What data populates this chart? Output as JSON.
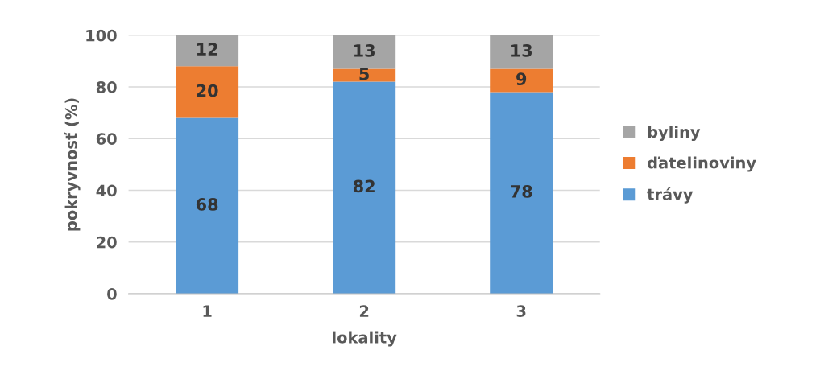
{
  "chart_data": {
    "type": "bar",
    "stacked": true,
    "xlabel": "lokality",
    "ylabel": "pokryvnosť (%)",
    "categories": [
      "1",
      "2",
      "3"
    ],
    "series": [
      {
        "name": "trávy",
        "color": "#5b9bd5",
        "values": [
          68,
          82,
          78
        ]
      },
      {
        "name": "ďatelinoviny",
        "color": "#ed7d31",
        "values": [
          20,
          5,
          9
        ]
      },
      {
        "name": "byliny",
        "color": "#a5a5a5",
        "values": [
          12,
          13,
          13
        ]
      }
    ],
    "ylim": [
      0,
      100
    ],
    "yticks": [
      0,
      20,
      40,
      60,
      80,
      100
    ],
    "grid": "y",
    "legend": "right",
    "data_labels": true
  }
}
